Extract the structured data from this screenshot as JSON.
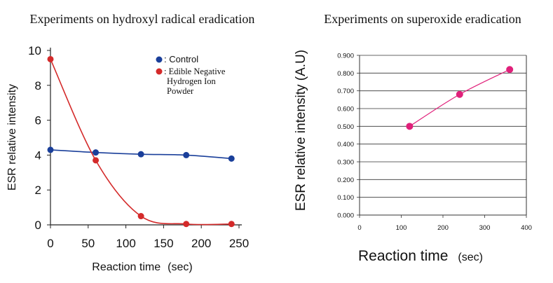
{
  "chart_data": [
    {
      "type": "line",
      "title": "Experiments on hydroxyl radical eradication",
      "xlabel": "Reaction time",
      "xlabel_unit": "(sec)",
      "ylabel": "ESR relative intensity",
      "xlim": [
        0,
        250
      ],
      "ylim": [
        0,
        10
      ],
      "x_ticks": [
        "0",
        "50",
        "100",
        "150",
        "200",
        "250"
      ],
      "y_ticks": [
        "0",
        "2",
        "4",
        "6",
        "8",
        "10"
      ],
      "grid": false,
      "legend": "top-right",
      "legend_entries": [
        {
          "label": ": Control",
          "color": "#1a3f9a"
        },
        {
          "label": ": Edible Negative Hydrogen Ion Powder",
          "lines": [
            ": Edible Negative",
            "Hydrogen Ion",
            "Powder"
          ],
          "color": "#d42a2a"
        }
      ],
      "series": [
        {
          "name": ": Control",
          "color": "#1a3f9a",
          "x": [
            0,
            60,
            120,
            180,
            240
          ],
          "y": [
            4.3,
            4.15,
            4.05,
            4.0,
            3.8
          ]
        },
        {
          "name": ": Edible Negative Hydrogen Ion Powder",
          "color": "#d42a2a",
          "x": [
            0,
            60,
            120,
            180,
            240
          ],
          "y": [
            9.5,
            3.7,
            0.5,
            0.05,
            0.05
          ]
        }
      ]
    },
    {
      "type": "line",
      "title": "Experiments on superoxide eradication",
      "xlabel": "Reaction time",
      "xlabel_unit": "(sec)",
      "ylabel": "ESR relative intensity (A.U)",
      "xlim": [
        0,
        400
      ],
      "ylim": [
        0,
        0.9
      ],
      "x_ticks": [
        "0",
        "100",
        "200",
        "300",
        "400"
      ],
      "y_ticks": [
        "0.000",
        "0.100",
        "0.200",
        "0.300",
        "0.400",
        "0.500",
        "0.600",
        "0.700",
        "0.800",
        "0.900"
      ],
      "grid": true,
      "series": [
        {
          "color": "#e0207a",
          "x": [
            120,
            240,
            360
          ],
          "y": [
            0.5,
            0.68,
            0.82
          ]
        }
      ]
    }
  ]
}
